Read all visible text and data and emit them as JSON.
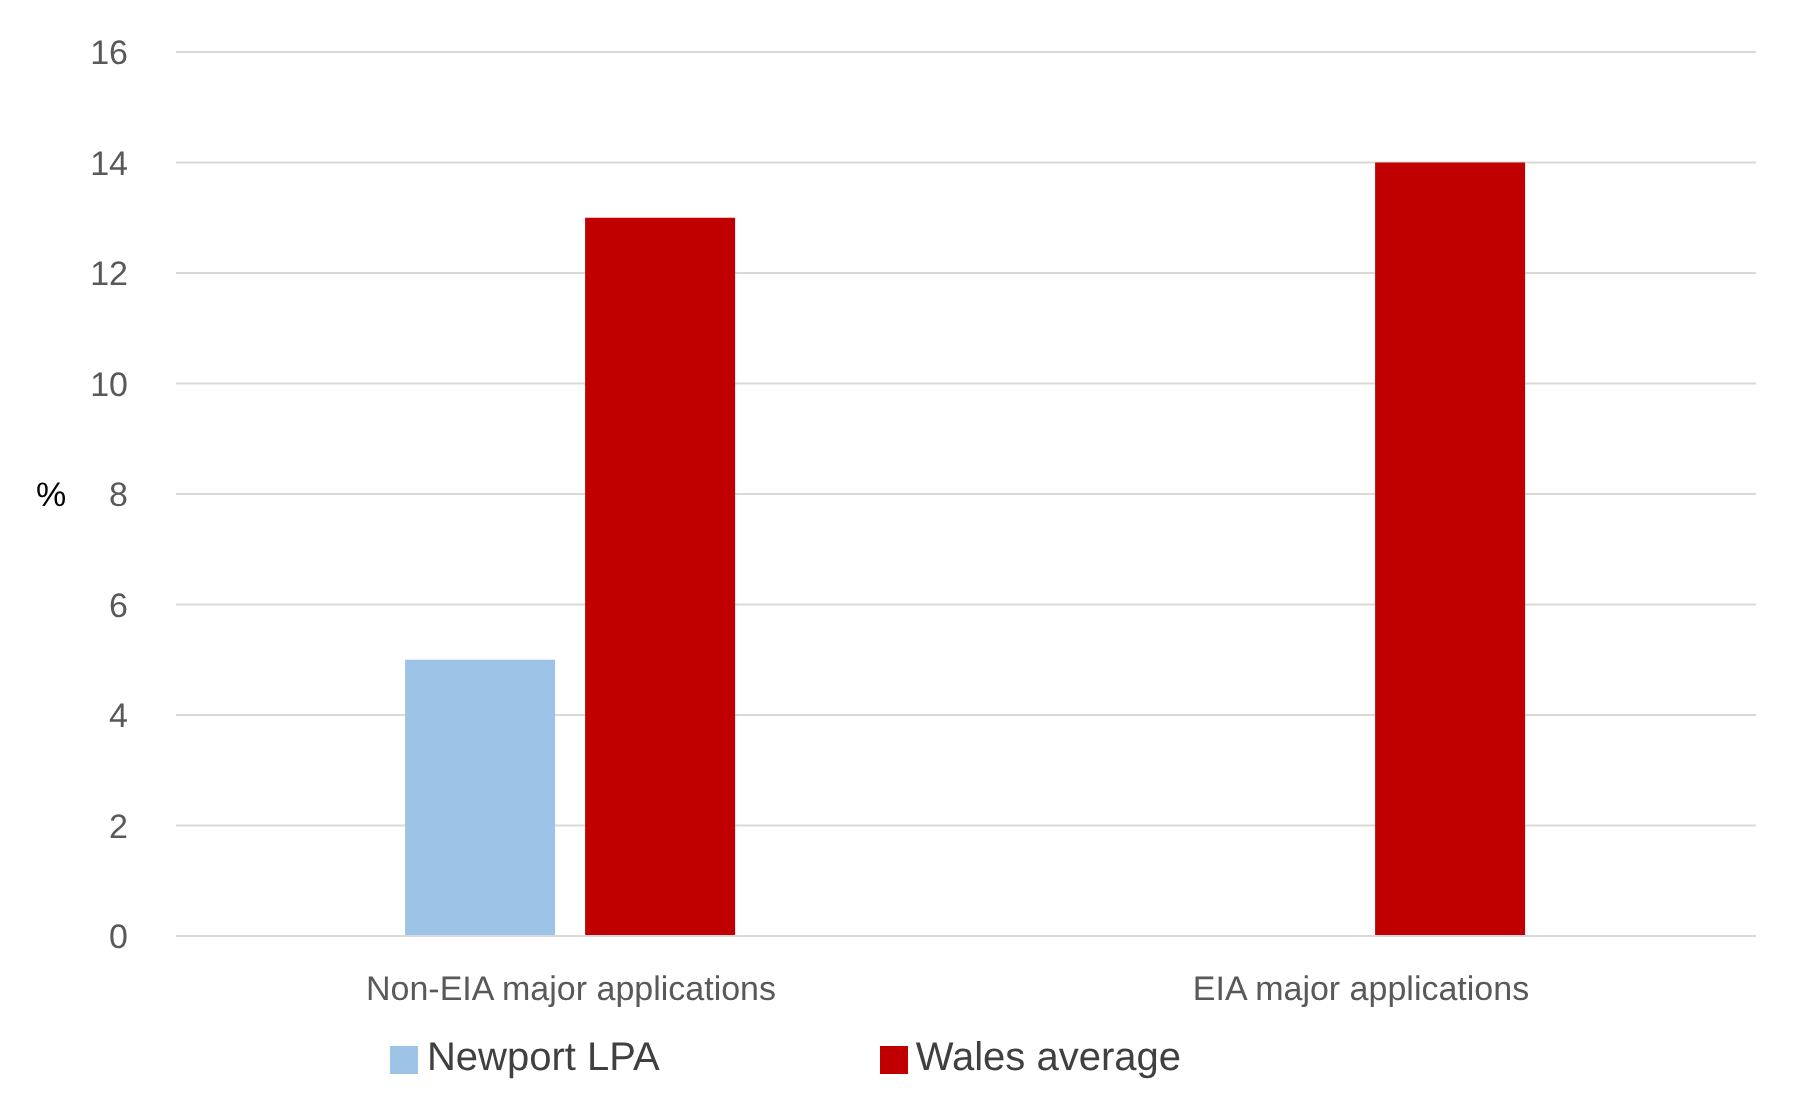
{
  "chart_data": {
    "type": "bar",
    "categories": [
      "Non-EIA major applications",
      "EIA major applications"
    ],
    "series": [
      {
        "name": "Newport LPA",
        "color": "#9dc3e6",
        "values": [
          5,
          0
        ]
      },
      {
        "name": "Wales average",
        "color": "#c00000",
        "values": [
          13,
          14
        ]
      }
    ],
    "ylabel": "%",
    "ylim": [
      0,
      16
    ],
    "yticks": [
      0,
      2,
      4,
      6,
      8,
      10,
      12,
      14,
      16
    ],
    "grid": "y",
    "legend": "bottom"
  }
}
